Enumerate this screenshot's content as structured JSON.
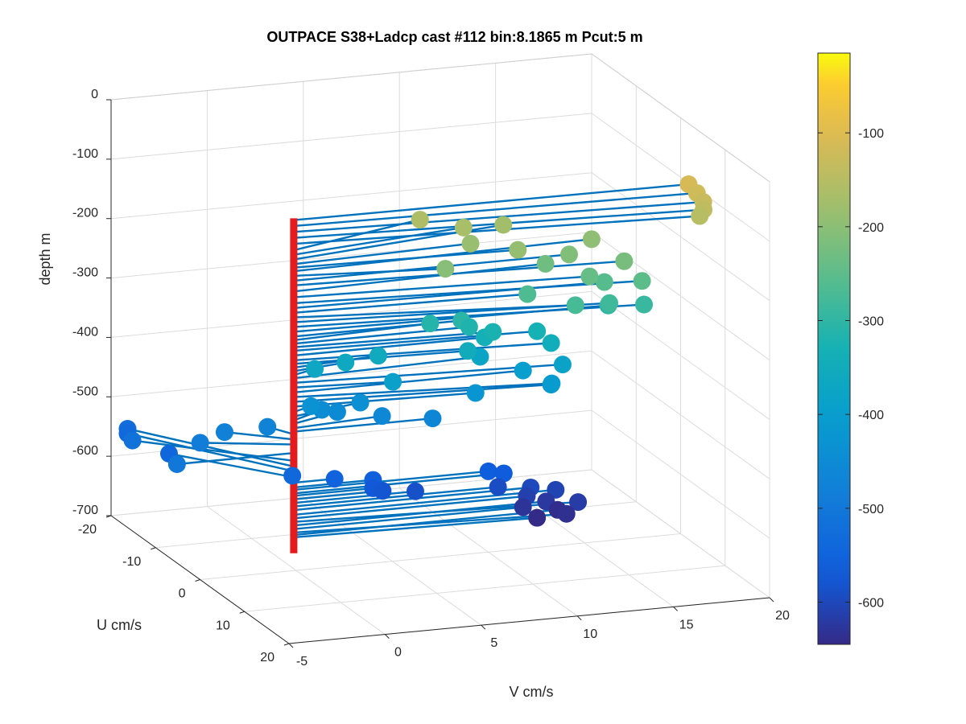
{
  "chart_data": {
    "type": "scatter",
    "title": "OUTPACE S38+Ladcp cast #112 bin:8.1865 m  Pcut:5 m",
    "xlabel": "V cm/s",
    "ylabel": "U cm/s",
    "zlabel": "depth m",
    "xlim": [
      -5,
      20
    ],
    "ylim": [
      -20,
      20
    ],
    "zlim": [
      -700,
      0
    ],
    "x_ticks": [
      "-5",
      "0",
      "5",
      "10",
      "15",
      "20"
    ],
    "y_ticks": [
      "-20",
      "-10",
      "0",
      "10",
      "20"
    ],
    "z_ticks": [
      "0",
      "-100",
      "-200",
      "-300",
      "-400",
      "-500",
      "-600",
      "-700"
    ],
    "grid": true,
    "colorbar": {
      "range": [
        -645,
        -15
      ],
      "ticks": [
        "-100",
        "-200",
        "-300",
        "-400",
        "-500",
        "-600"
      ],
      "colormap": "parula"
    },
    "profile_line_color": "#e41a1c",
    "vector_color": "#0072bd",
    "points": [
      {
        "z": -110,
        "u": 0.5,
        "v": 20.3
      },
      {
        "z": -120,
        "u": 1.5,
        "v": 20.5
      },
      {
        "z": -130,
        "u": 2.5,
        "v": 20.6
      },
      {
        "z": -140,
        "u": 3.0,
        "v": 20.5
      },
      {
        "z": -150,
        "u": 3.0,
        "v": 20.3
      },
      {
        "z": -160,
        "u": -5.0,
        "v": 7.6
      },
      {
        "z": -168,
        "u": -3.0,
        "v": 9.4
      },
      {
        "z": -176,
        "u": -4.0,
        "v": 11.7
      },
      {
        "z": -184,
        "u": -1.0,
        "v": 9.3
      },
      {
        "z": -190,
        "u": 1.0,
        "v": 11.3
      },
      {
        "z": -196,
        "u": -1.0,
        "v": 15.6
      },
      {
        "z": -204,
        "u": 2.0,
        "v": 7.3
      },
      {
        "z": -212,
        "u": 0.0,
        "v": 14.2
      },
      {
        "z": -220,
        "u": 2.0,
        "v": 16.6
      },
      {
        "z": -230,
        "u": -1.0,
        "v": 13.2
      },
      {
        "z": -240,
        "u": 2.0,
        "v": 14.8
      },
      {
        "z": -250,
        "u": 3.0,
        "v": 17.3
      },
      {
        "z": -258,
        "u": 1.0,
        "v": 15.8
      },
      {
        "z": -266,
        "u": 1.0,
        "v": 11.8
      },
      {
        "z": -274,
        "u": 4.0,
        "v": 13.6
      },
      {
        "z": -282,
        "u": 3.0,
        "v": 15.6
      },
      {
        "z": -290,
        "u": 3.0,
        "v": 17.4
      },
      {
        "z": -298,
        "u": 1.0,
        "v": 16.0
      },
      {
        "z": -306,
        "u": 0.0,
        "v": 8.6
      },
      {
        "z": -312,
        "u": -1.0,
        "v": 7.2
      },
      {
        "z": -318,
        "u": 0.0,
        "v": 9.0
      },
      {
        "z": -324,
        "u": 1.0,
        "v": 10.0
      },
      {
        "z": -330,
        "u": 1.0,
        "v": 12.3
      },
      {
        "z": -338,
        "u": 0.0,
        "v": 9.8
      },
      {
        "z": -346,
        "u": 2.0,
        "v": 12.8
      },
      {
        "z": -352,
        "u": 1.0,
        "v": 8.7
      },
      {
        "z": -358,
        "u": -1.0,
        "v": 4.5
      },
      {
        "z": -364,
        "u": -1.0,
        "v": 2.8
      },
      {
        "z": -370,
        "u": -1.0,
        "v": 1.2
      },
      {
        "z": -376,
        "u": -1.0,
        "v": 9.8
      },
      {
        "z": -384,
        "u": 2.0,
        "v": 13.4
      },
      {
        "z": -392,
        "u": 1.0,
        "v": 4.8
      },
      {
        "z": -400,
        "u": 0.0,
        "v": 11.8
      },
      {
        "z": -408,
        "u": 3.0,
        "v": 12.6
      },
      {
        "z": -416,
        "u": 2.0,
        "v": 12.8
      },
      {
        "z": -424,
        "u": 1.0,
        "v": 9.1
      },
      {
        "z": -432,
        "u": -1.0,
        "v": 1.0
      },
      {
        "z": -440,
        "u": -2.0,
        "v": 3.8
      },
      {
        "z": -446,
        "u": -2.0,
        "v": 1.8
      },
      {
        "z": -452,
        "u": -2.0,
        "v": 2.6
      },
      {
        "z": -460,
        "u": -1.0,
        "v": 4.7
      },
      {
        "z": -466,
        "u": 0.0,
        "v": 7.1
      },
      {
        "z": -472,
        "u": -3.0,
        "v": -0.8
      },
      {
        "z": -480,
        "u": -4.0,
        "v": -2.8
      },
      {
        "z": -488,
        "u": -3.0,
        "v": -4.3
      },
      {
        "z": -502,
        "u": 0.0,
        "v": -6.2
      },
      {
        "z": -516,
        "u": -10.0,
        "v": -6.2
      },
      {
        "z": -526,
        "u": -15.0,
        "v": -5.3
      },
      {
        "z": -534,
        "u": -15.0,
        "v": -5.3
      },
      {
        "z": -544,
        "u": -10.0,
        "v": -4.3
      },
      {
        "z": -540,
        "u": 0.0,
        "v": -0.2
      },
      {
        "z": -552,
        "u": 0.0,
        "v": 2.0
      },
      {
        "z": -560,
        "u": 0.0,
        "v": 4.0
      },
      {
        "z": -564,
        "u": 0.0,
        "v": 10.0
      },
      {
        "z": -570,
        "u": 0.0,
        "v": 10.8
      },
      {
        "z": -574,
        "u": 0.0,
        "v": 4.0
      },
      {
        "z": -580,
        "u": 0.0,
        "v": 4.5
      },
      {
        "z": -586,
        "u": 0.0,
        "v": 6.2
      },
      {
        "z": -592,
        "u": 0.0,
        "v": 10.5
      },
      {
        "z": -598,
        "u": 0.0,
        "v": 12.2
      },
      {
        "z": -606,
        "u": 0.0,
        "v": 13.5
      },
      {
        "z": -612,
        "u": 0.0,
        "v": 12.0
      },
      {
        "z": -618,
        "u": 2.0,
        "v": 14.2
      },
      {
        "z": -624,
        "u": 0.0,
        "v": 13.0
      },
      {
        "z": -630,
        "u": 0.0,
        "v": 11.8
      },
      {
        "z": -636,
        "u": 2.0,
        "v": 13.6
      },
      {
        "z": -640,
        "u": 0.0,
        "v": 13.6
      },
      {
        "z": -644,
        "u": 1.0,
        "v": 12.3
      }
    ]
  }
}
